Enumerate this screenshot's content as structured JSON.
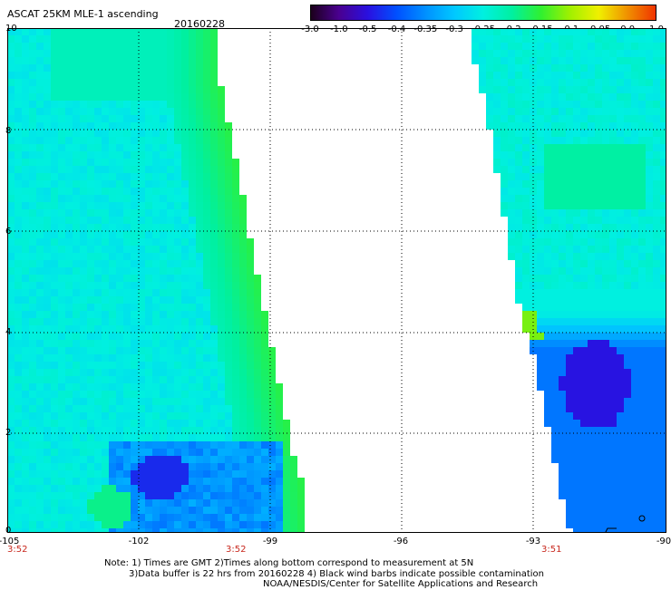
{
  "header": {
    "title": "ASCAT 25KM MLE-1 ascending",
    "date": "20160228"
  },
  "colorbar": {
    "labels": [
      "-3.0",
      "-1.0",
      "-0.5",
      "-0.4",
      "-0.35",
      "-0.3",
      "-0.25",
      "-0.2",
      "-0.15",
      "-0.1",
      "-0.05",
      "0.0",
      "1.0"
    ],
    "colors": [
      "#1a0018",
      "#4a0090",
      "#2a10e0",
      "#0050ff",
      "#0090ff",
      "#00c8ff",
      "#00f0e0",
      "#00f0a0",
      "#30f030",
      "#a0f000",
      "#f0f000",
      "#f09000",
      "#f03000"
    ]
  },
  "map": {
    "lon_ticks": [
      "-105",
      "-102",
      "-99",
      "-96",
      "-93",
      "-90"
    ],
    "lat_ticks": [
      "0",
      "2",
      "4",
      "6",
      "8",
      "10"
    ],
    "lon_range": [
      -105,
      -90
    ],
    "lat_range": [
      0,
      10
    ],
    "times": [
      "3:52",
      "3:52",
      "3:51"
    ],
    "grid": "dotted"
  },
  "notes": {
    "line1": "Note: 1) Times are GMT 2)Times along bottom correspond to measurement at 5N",
    "line2": "3)Data buffer is 22 hrs from 20160228 4) Black wind barbs indicate possible contamination",
    "line3": "NOAA/NESDIS/Center for Satellite Applications and Research"
  }
}
